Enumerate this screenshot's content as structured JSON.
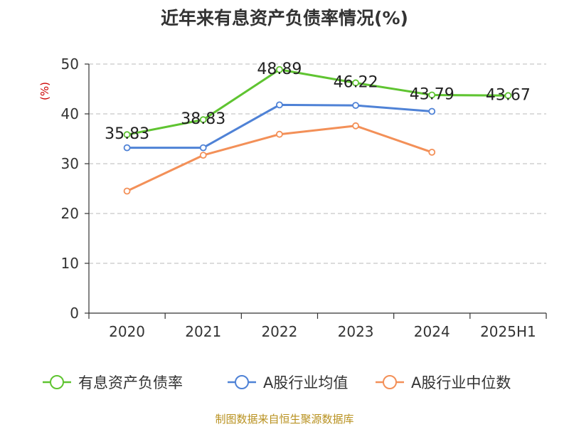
{
  "chart_data": {
    "type": "line",
    "title": "近年来有息资产负债率情况(%)",
    "ylabel": "(%)",
    "categories": [
      "2020",
      "2021",
      "2022",
      "2023",
      "2024",
      "2025H1"
    ],
    "ylim": [
      0,
      50
    ],
    "yticks": [
      0,
      10,
      20,
      30,
      40,
      50
    ],
    "grid": true,
    "legend_position": "bottom",
    "series": [
      {
        "name": "有息资产负债率",
        "color": "#5fc431",
        "show_labels": true,
        "values": [
          35.83,
          38.83,
          48.89,
          46.22,
          43.79,
          43.67
        ]
      },
      {
        "name": "A股行业均值",
        "color": "#4f82d6",
        "show_labels": false,
        "values": [
          33.2,
          33.2,
          41.8,
          41.7,
          40.5,
          null
        ]
      },
      {
        "name": "A股行业中位数",
        "color": "#f39058",
        "show_labels": false,
        "values": [
          24.5,
          31.7,
          35.9,
          37.6,
          32.3,
          null
        ]
      }
    ]
  },
  "footer": {
    "source": "制图数据来自恒生聚源数据库"
  }
}
